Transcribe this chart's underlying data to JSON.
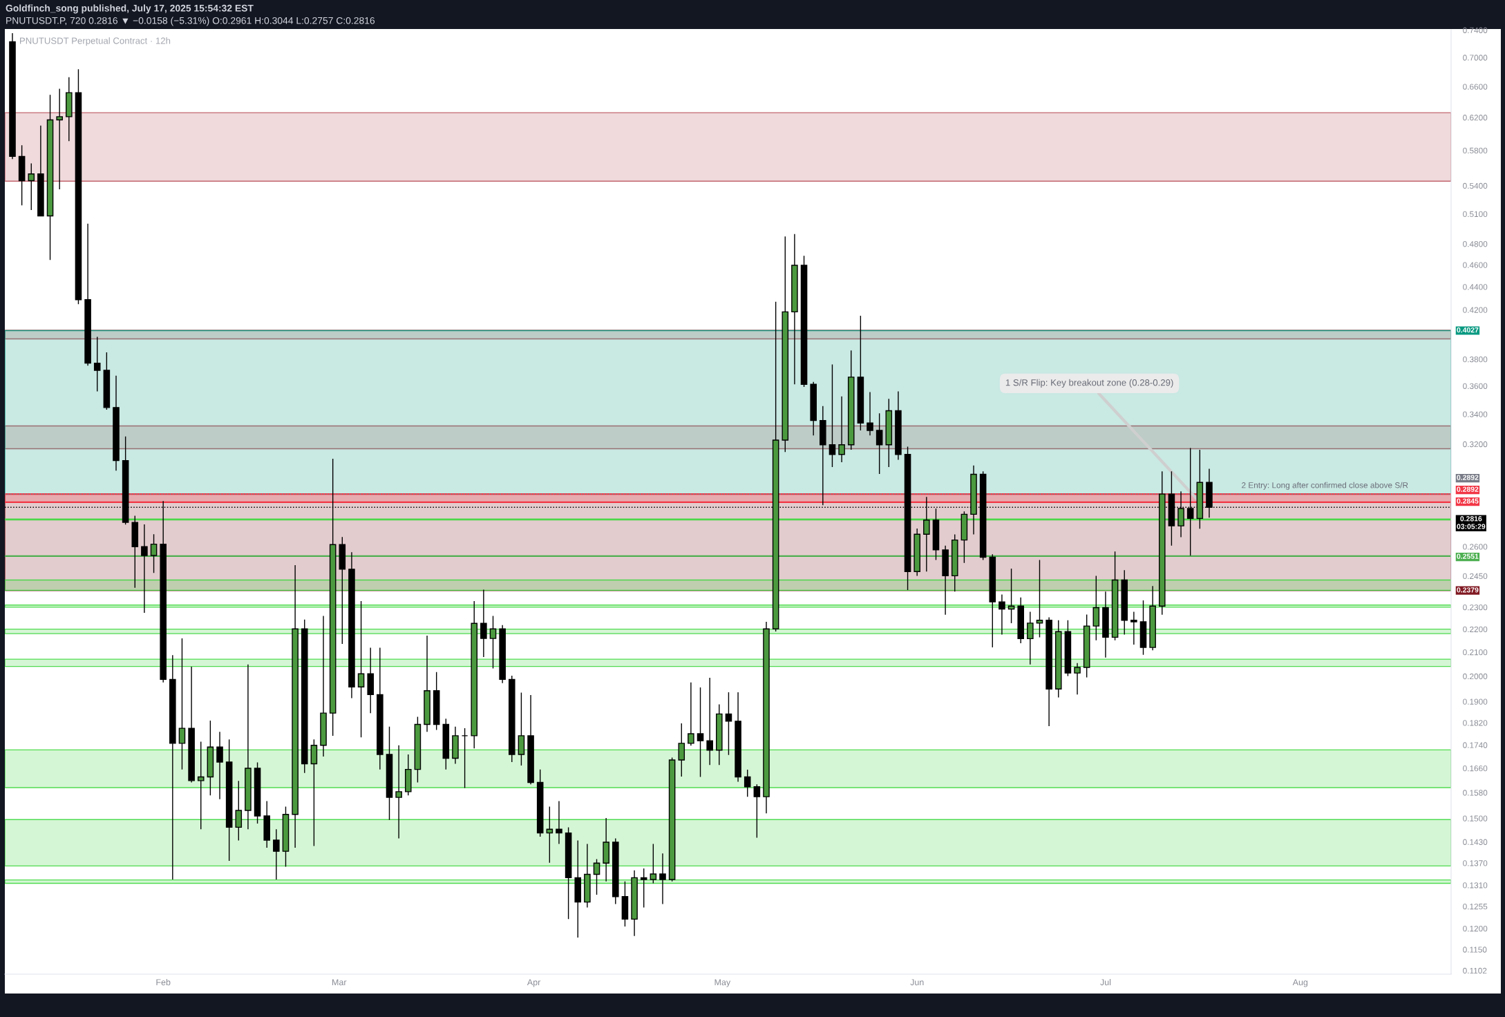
{
  "chart_data": {
    "type": "candlestick",
    "title": "Goldfinch_song published, July 17, 2025 15:54:32 EST",
    "subtitle": "PNUTUSDT.P, 720 0.2816 ▼ −0.0158 (−5.31%) O:0.2961 H:0.3044 L:0.2757 C:0.2816",
    "annotations": [
      "PNUTUSDT Perpetual Contract · 12h",
      {
        "text": "1 S/R Flip: Key breakout zone (0.28-0.29)",
        "x": "2025-07-16T12:00",
        "y": 0.2825
      },
      "2 Entry: Long after confirmed close above S/R"
    ],
    "log": true,
    "xlim": [
      "2025-01-06T19:00",
      "2025-08-25"
    ],
    "xticks": [
      {
        "value": "2025-02-01",
        "label": "Feb"
      },
      {
        "value": "2025-03-01",
        "label": "Mar"
      },
      {
        "value": "2025-04-01",
        "label": "Apr"
      },
      {
        "value": "2025-05-01",
        "label": "May"
      },
      {
        "value": "2025-06-01",
        "label": "Jun"
      },
      {
        "value": "2025-07-01",
        "label": "Jul"
      },
      {
        "value": "2025-08-01",
        "label": "Aug"
      }
    ],
    "ylim": [
      0.1094,
      0.7406
    ],
    "yticks": [
      {
        "value": 0.74,
        "label": "0.7400"
      },
      {
        "value": 0.7,
        "label": "0.7000"
      },
      {
        "value": 0.66,
        "label": "0.6600"
      },
      {
        "value": 0.62,
        "label": "0.6200"
      },
      {
        "value": 0.58,
        "label": "0.5800"
      },
      {
        "value": 0.54,
        "label": "0.5400"
      },
      {
        "value": 0.51,
        "label": "0.5100"
      },
      {
        "value": 0.48,
        "label": "0.4800"
      },
      {
        "value": 0.46,
        "label": "0.4600"
      },
      {
        "value": 0.44,
        "label": "0.4400"
      },
      {
        "value": 0.42,
        "label": "0.4200"
      },
      {
        "value": 0.38,
        "label": "0.3800"
      },
      {
        "value": 0.36,
        "label": "0.3600"
      },
      {
        "value": 0.34,
        "label": "0.3400"
      },
      {
        "value": 0.32,
        "label": "0.3200"
      },
      {
        "value": 0.26,
        "label": "0.2600"
      },
      {
        "value": 0.245,
        "label": "0.2450"
      },
      {
        "value": 0.23,
        "label": "0.2300"
      },
      {
        "value": 0.22,
        "label": "0.2200"
      },
      {
        "value": 0.21,
        "label": "0.2100"
      },
      {
        "value": 0.2,
        "label": "0.2000"
      },
      {
        "value": 0.19,
        "label": "0.1900"
      },
      {
        "value": 0.182,
        "label": "0.1820"
      },
      {
        "value": 0.174,
        "label": "0.1740"
      },
      {
        "value": 0.166,
        "label": "0.1660"
      },
      {
        "value": 0.158,
        "label": "0.1580"
      },
      {
        "value": 0.15,
        "label": "0.1500"
      },
      {
        "value": 0.143,
        "label": "0.1430"
      },
      {
        "value": 0.137,
        "label": "0.1370"
      },
      {
        "value": 0.131,
        "label": "0.1310"
      },
      {
        "value": 0.1255,
        "label": "0.1255"
      },
      {
        "value": 0.12,
        "label": "0.1200"
      },
      {
        "value": 0.115,
        "label": "0.1150"
      },
      {
        "value": 0.1102,
        "label": "0.1102"
      }
    ],
    "series": [
      {
        "color": "#000000",
        "x": [
          "2025-01-08T00:00",
          "2025-01-09T12:00",
          "2025-01-11T00:00",
          "2025-01-12T12:00",
          "2025-01-14T00:00",
          "2025-01-15T12:00",
          "2025-01-17T00:00",
          "2025-01-18T12:00",
          "2025-01-20T00:00",
          "2025-01-21T12:00",
          "2025-01-23T00:00",
          "2025-01-24T12:00",
          "2025-01-26T00:00",
          "2025-01-27T12:00",
          "2025-01-29T00:00",
          "2025-01-30T12:00",
          "2025-02-01T00:00",
          "2025-02-02T12:00",
          "2025-02-04T00:00",
          "2025-02-05T12:00",
          "2025-02-07T00:00",
          "2025-02-08T12:00",
          "2025-02-10T00:00",
          "2025-02-11T12:00",
          "2025-02-13T00:00",
          "2025-02-14T12:00",
          "2025-02-16T00:00",
          "2025-02-17T12:00",
          "2025-02-19T00:00",
          "2025-02-20T12:00",
          "2025-02-22T00:00",
          "2025-02-23T12:00",
          "2025-02-25T00:00",
          "2025-02-26T12:00",
          "2025-02-28T00:00",
          "2025-03-01T12:00",
          "2025-03-03T00:00",
          "2025-03-04T12:00",
          "2025-03-06T00:00",
          "2025-03-07T12:00",
          "2025-03-09T00:00",
          "2025-03-10T12:00",
          "2025-03-12T00:00",
          "2025-03-13T12:00",
          "2025-03-15T00:00",
          "2025-03-16T12:00",
          "2025-03-18T00:00",
          "2025-03-19T12:00",
          "2025-03-21T00:00",
          "2025-03-22T12:00",
          "2025-03-24T00:00",
          "2025-03-25T12:00",
          "2025-03-27T00:00",
          "2025-03-28T12:00",
          "2025-03-30T00:00",
          "2025-03-31T12:00",
          "2025-04-02T00:00",
          "2025-04-03T12:00",
          "2025-04-05T00:00",
          "2025-04-06T12:00",
          "2025-04-08T00:00",
          "2025-04-09T12:00",
          "2025-04-11T00:00",
          "2025-04-12T12:00",
          "2025-04-14T00:00",
          "2025-04-15T12:00",
          "2025-04-17T00:00",
          "2025-04-18T12:00",
          "2025-04-20T00:00",
          "2025-04-21T12:00",
          "2025-04-23T00:00",
          "2025-04-24T12:00",
          "2025-04-26T00:00",
          "2025-04-27T12:00",
          "2025-04-29T00:00",
          "2025-04-30T12:00",
          "2025-05-02T00:00",
          "2025-05-03T12:00",
          "2025-05-05T00:00",
          "2025-05-06T12:00",
          "2025-05-08T00:00",
          "2025-05-09T12:00",
          "2025-05-11T00:00",
          "2025-05-12T12:00",
          "2025-05-14T00:00",
          "2025-05-15T12:00",
          "2025-05-17T00:00",
          "2025-05-18T12:00",
          "2025-05-20T00:00",
          "2025-05-21T12:00",
          "2025-05-23T00:00",
          "2025-05-24T12:00",
          "2025-05-26T00:00",
          "2025-05-27T12:00",
          "2025-05-29T00:00",
          "2025-05-30T12:00",
          "2025-06-01T00:00",
          "2025-06-02T12:00",
          "2025-06-04T00:00",
          "2025-06-05T12:00",
          "2025-06-07T00:00",
          "2025-06-08T12:00",
          "2025-06-10T00:00",
          "2025-06-11T12:00",
          "2025-06-13T00:00",
          "2025-06-14T12:00",
          "2025-06-16T00:00",
          "2025-06-17T12:00",
          "2025-06-19T00:00",
          "2025-06-20T12:00",
          "2025-06-22T00:00",
          "2025-06-23T12:00",
          "2025-06-25T00:00",
          "2025-06-26T12:00",
          "2025-06-28T00:00",
          "2025-06-29T12:00",
          "2025-07-01T00:00",
          "2025-07-02T12:00",
          "2025-07-04T00:00",
          "2025-07-05T12:00",
          "2025-07-07T00:00",
          "2025-07-08T12:00",
          "2025-07-10T00:00",
          "2025-07-11T12:00",
          "2025-07-13T00:00",
          "2025-07-14T12:00",
          "2025-07-16T00:00",
          "2025-07-17T12:00"
        ],
        "ohlc": [
          [
            0.7227,
            0.7354,
            0.57,
            0.573
          ],
          [
            0.573,
            0.586,
            0.519,
            0.5455
          ],
          [
            0.5455,
            0.565,
            0.514,
            0.553
          ],
          [
            0.553,
            0.61,
            0.508,
            0.508
          ],
          [
            0.508,
            0.649,
            0.4646,
            0.617
          ],
          [
            0.617,
            0.657,
            0.536,
            0.621
          ],
          [
            0.621,
            0.6728,
            0.591,
            0.652
          ],
          [
            0.652,
            0.6837,
            0.4248,
            0.4287
          ],
          [
            0.4287,
            0.5,
            0.3751,
            0.377
          ],
          [
            0.377,
            0.3976,
            0.356,
            0.3716
          ],
          [
            0.3716,
            0.3853,
            0.3431,
            0.3446
          ],
          [
            0.3446,
            0.3676,
            0.3032,
            0.3095
          ],
          [
            0.3095,
            0.325,
            0.2719,
            0.2731
          ],
          [
            0.2731,
            0.2768,
            0.2392,
            0.26
          ],
          [
            0.26,
            0.272,
            0.2274,
            0.2554
          ],
          [
            0.2554,
            0.2666,
            0.2465,
            0.2613
          ],
          [
            0.2613,
            0.2851,
            0.1975,
            0.1987
          ],
          [
            0.1987,
            0.2087,
            0.1325,
            0.1746
          ],
          [
            0.1746,
            0.2159,
            0.1656,
            0.18
          ],
          [
            0.18,
            0.2039,
            0.1613,
            0.1619
          ],
          [
            0.1619,
            0.1752,
            0.1467,
            0.1631
          ],
          [
            0.1631,
            0.1828,
            0.1571,
            0.1733
          ],
          [
            0.1733,
            0.1787,
            0.1559,
            0.1681
          ],
          [
            0.1681,
            0.176,
            0.1376,
            0.1473
          ],
          [
            0.1473,
            0.1618,
            0.1434,
            0.1524
          ],
          [
            0.1524,
            0.2048,
            0.1467,
            0.166
          ],
          [
            0.166,
            0.168,
            0.1484,
            0.1507
          ],
          [
            0.1507,
            0.1553,
            0.1413,
            0.1435
          ],
          [
            0.1435,
            0.1467,
            0.1325,
            0.1403
          ],
          [
            0.1403,
            0.1536,
            0.136,
            0.1512
          ],
          [
            0.1512,
            0.2504,
            0.1413,
            0.2201
          ],
          [
            0.2201,
            0.2243,
            0.1644,
            0.1675
          ],
          [
            0.1675,
            0.176,
            0.1418,
            0.1739
          ],
          [
            0.1739,
            0.226,
            0.17,
            0.1856
          ],
          [
            0.1856,
            0.3107,
            0.1773,
            0.2611
          ],
          [
            0.2611,
            0.2651,
            0.2135,
            0.2484
          ],
          [
            0.2484,
            0.2571,
            0.1913,
            0.1957
          ],
          [
            0.1957,
            0.2329,
            0.1767,
            0.201
          ],
          [
            0.201,
            0.2119,
            0.1856,
            0.1927
          ],
          [
            0.1927,
            0.2119,
            0.1656,
            0.1707
          ],
          [
            0.1707,
            0.1806,
            0.1495,
            0.1565
          ],
          [
            0.1565,
            0.1739,
            0.144,
            0.1583
          ],
          [
            0.1583,
            0.1707,
            0.1571,
            0.1656
          ],
          [
            0.1656,
            0.1842,
            0.1613,
            0.1814
          ],
          [
            0.1814,
            0.2171,
            0.1787,
            0.1942
          ],
          [
            0.1942,
            0.2017,
            0.1794,
            0.1814
          ],
          [
            0.1814,
            0.1835,
            0.1656,
            0.1694
          ],
          [
            0.1694,
            0.1806,
            0.1675,
            0.1773
          ],
          [
            0.1773,
            0.18,
            0.1595,
            0.1773
          ],
          [
            0.1773,
            0.2329,
            0.1728,
            0.2226
          ],
          [
            0.2226,
            0.2383,
            0.2079,
            0.2159
          ],
          [
            0.2159,
            0.226,
            0.2032,
            0.2201
          ],
          [
            0.2201,
            0.2218,
            0.1972,
            0.1987
          ],
          [
            0.1987,
            0.2002,
            0.1681,
            0.1707
          ],
          [
            0.1707,
            0.1935,
            0.1669,
            0.1773
          ],
          [
            0.1773,
            0.1925,
            0.1607,
            0.1613
          ],
          [
            0.1613,
            0.1656,
            0.1445,
            0.1456
          ],
          [
            0.1456,
            0.1536,
            0.1371,
            0.1467
          ],
          [
            0.1467,
            0.1553,
            0.1424,
            0.1456
          ],
          [
            0.1456,
            0.1473,
            0.1223,
            0.133
          ],
          [
            0.133,
            0.1434,
            0.1178,
            0.1266
          ],
          [
            0.1266,
            0.1424,
            0.1252,
            0.1339
          ],
          [
            0.1339,
            0.1381,
            0.1285,
            0.137
          ],
          [
            0.137,
            0.1501,
            0.132,
            0.1429
          ],
          [
            0.1429,
            0.144,
            0.1261,
            0.128
          ],
          [
            0.128,
            0.132,
            0.1205,
            0.1223
          ],
          [
            0.1223,
            0.135,
            0.1182,
            0.133
          ],
          [
            0.133,
            0.1355,
            0.1252,
            0.1325
          ],
          [
            0.1325,
            0.1424,
            0.1315,
            0.134
          ],
          [
            0.134,
            0.1397,
            0.1261,
            0.1325
          ],
          [
            0.1325,
            0.1696,
            0.132,
            0.1688
          ],
          [
            0.1688,
            0.1818,
            0.1632,
            0.1746
          ],
          [
            0.1746,
            0.1975,
            0.1738,
            0.178
          ],
          [
            0.178,
            0.1955,
            0.1631,
            0.1755
          ],
          [
            0.1755,
            0.1994,
            0.1671,
            0.1722
          ],
          [
            0.1722,
            0.1889,
            0.1671,
            0.1853
          ],
          [
            0.1853,
            0.1936,
            0.1705,
            0.1826
          ],
          [
            0.1826,
            0.1936,
            0.1615,
            0.1631
          ],
          [
            0.1631,
            0.1655,
            0.1567,
            0.1599
          ],
          [
            0.1599,
            0.1607,
            0.1442,
            0.1567
          ],
          [
            0.1567,
            0.2233,
            0.1515,
            0.2201
          ],
          [
            0.2201,
            0.4269,
            0.219,
            0.3226
          ],
          [
            0.3226,
            0.4873,
            0.3149,
            0.4183
          ],
          [
            0.4183,
            0.4897,
            0.3612,
            0.4596
          ],
          [
            0.4596,
            0.4686,
            0.3593,
            0.3612
          ],
          [
            0.3612,
            0.363,
            0.3257,
            0.3357
          ],
          [
            0.3357,
            0.3456,
            0.2828,
            0.3196
          ],
          [
            0.3196,
            0.376,
            0.3055,
            0.3134
          ],
          [
            0.3134,
            0.3525,
            0.3085,
            0.3196
          ],
          [
            0.3196,
            0.3868,
            0.3164,
            0.3665
          ],
          [
            0.3665,
            0.415,
            0.329,
            0.334
          ],
          [
            0.334,
            0.3555,
            0.3257,
            0.329
          ],
          [
            0.329,
            0.3406,
            0.3012,
            0.3196
          ],
          [
            0.3196,
            0.3507,
            0.3055,
            0.3424
          ],
          [
            0.3424,
            0.356,
            0.31,
            0.3134
          ],
          [
            0.3134,
            0.3183,
            0.2381,
            0.2472
          ],
          [
            0.2472,
            0.2697,
            0.2451,
            0.2666
          ],
          [
            0.2666,
            0.2875,
            0.2472,
            0.2744
          ],
          [
            0.2744,
            0.2809,
            0.2531,
            0.2583
          ],
          [
            0.2583,
            0.2605,
            0.2265,
            0.2451
          ],
          [
            0.2451,
            0.2665,
            0.2374,
            0.2635
          ],
          [
            0.2635,
            0.2792,
            0.2516,
            0.2776
          ],
          [
            0.2776,
            0.3064,
            0.2665,
            0.301
          ],
          [
            0.301,
            0.3028,
            0.2531,
            0.2545
          ],
          [
            0.2545,
            0.256,
            0.212,
            0.2325
          ],
          [
            0.2325,
            0.236,
            0.2176,
            0.2291
          ],
          [
            0.2291,
            0.2487,
            0.2227,
            0.2305
          ],
          [
            0.2305,
            0.2346,
            0.2138,
            0.2158
          ],
          [
            0.2158,
            0.2279,
            0.2048,
            0.2227
          ],
          [
            0.2227,
            0.2531,
            0.2164,
            0.224
          ],
          [
            0.224,
            0.2253,
            0.1808,
            0.1949
          ],
          [
            0.1949,
            0.224,
            0.1916,
            0.2189
          ],
          [
            0.2189,
            0.224,
            0.2001,
            0.2013
          ],
          [
            0.2013,
            0.2054,
            0.1927,
            0.2036
          ],
          [
            0.2036,
            0.2266,
            0.1995,
            0.2214
          ],
          [
            0.2214,
            0.2451,
            0.2151,
            0.2298
          ],
          [
            0.2298,
            0.2374,
            0.2077,
            0.2164
          ],
          [
            0.2164,
            0.2575,
            0.2151,
            0.243
          ],
          [
            0.243,
            0.2479,
            0.2176,
            0.224
          ],
          [
            0.224,
            0.2279,
            0.2132,
            0.2233
          ],
          [
            0.2233,
            0.2332,
            0.2089,
            0.212
          ],
          [
            0.212,
            0.2401,
            0.2108,
            0.2305
          ],
          [
            0.2305,
            0.3028,
            0.2265,
            0.2892
          ],
          [
            0.2892,
            0.3028,
            0.2605,
            0.2712
          ],
          [
            0.2712,
            0.2908,
            0.265,
            0.2809
          ],
          [
            0.2809,
            0.3175,
            0.2553,
            0.2753
          ],
          [
            0.2753,
            0.3163,
            0.2696,
            0.2961
          ],
          [
            0.2961,
            0.3044,
            0.2757,
            0.2816
          ]
        ],
        "colors": [
          "#000000",
          "#000000",
          "#4c9a3f",
          "#000000",
          "#4c9a3f",
          "#4c9a3f",
          "#4c9a3f",
          "#000000",
          "#000000",
          "#000000",
          "#000000",
          "#000000",
          "#000000",
          "#000000",
          "#000000",
          "#4c9a3f",
          "#000000",
          "#000000",
          "#4c9a3f",
          "#000000",
          "#4c9a3f",
          "#4c9a3f",
          "#000000",
          "#000000",
          "#4c9a3f",
          "#4c9a3f",
          "#000000",
          "#000000",
          "#000000",
          "#4c9a3f",
          "#4c9a3f",
          "#000000",
          "#4c9a3f",
          "#4c9a3f",
          "#4c9a3f",
          "#000000",
          "#000000",
          "#4c9a3f",
          "#000000",
          "#000000",
          "#000000",
          "#4c9a3f",
          "#4c9a3f",
          "#4c9a3f",
          "#4c9a3f",
          "#000000",
          "#000000",
          "#4c9a3f",
          "#000000",
          "#4c9a3f",
          "#000000",
          "#4c9a3f",
          "#000000",
          "#000000",
          "#4c9a3f",
          "#000000",
          "#000000",
          "#4c9a3f",
          "#000000",
          "#000000",
          "#000000",
          "#4c9a3f",
          "#4c9a3f",
          "#4c9a3f",
          "#000000",
          "#000000",
          "#4c9a3f",
          "#000000",
          "#4c9a3f",
          "#000000",
          "#4c9a3f",
          "#4c9a3f",
          "#4c9a3f",
          "#000000",
          "#000000",
          "#4c9a3f",
          "#000000",
          "#000000",
          "#000000",
          "#000000",
          "#4c9a3f",
          "#4c9a3f",
          "#4c9a3f",
          "#4c9a3f",
          "#000000",
          "#000000",
          "#000000",
          "#000000",
          "#4c9a3f",
          "#4c9a3f",
          "#000000",
          "#000000",
          "#000000",
          "#4c9a3f",
          "#000000",
          "#000000",
          "#4c9a3f",
          "#4c9a3f",
          "#000000",
          "#000000",
          "#4c9a3f",
          "#4c9a3f",
          "#4c9a3f",
          "#000000",
          "#000000",
          "#000000",
          "#4c9a3f",
          "#000000",
          "#4c9a3f",
          "#4c9a3f",
          "#000000",
          "#4c9a3f",
          "#000000",
          "#4c9a3f",
          "#4c9a3f",
          "#4c9a3f",
          "#000000",
          "#4c9a3f",
          "#000000",
          "#000000",
          "#000000",
          "#4c9a3f",
          "#4c9a3f",
          "#000000",
          "#4c9a3f",
          "#000000",
          "#4c9a3f",
          "#000000"
        ]
      }
    ],
    "bands": [
      {
        "axis": "y",
        "from": 0.545,
        "to": 0.626,
        "color": "#bb5760"
      },
      {
        "axis": "y",
        "from": 0.396,
        "to": 0.403,
        "color": "#bb5760"
      },
      {
        "axis": "y",
        "from": 0.317,
        "to": 0.332,
        "color": "#bb5760"
      },
      {
        "axis": "y",
        "from": 0.2892,
        "to": 0.4027,
        "label": "0.4027",
        "color": "#089981"
      },
      {
        "axis": "y",
        "from": 0.2892,
        "to": 0.2379,
        "label": "0.2379",
        "color": "#801922"
      },
      {
        "axis": "y",
        "from": 0.2845,
        "to": 0.2892,
        "color": "#f23645"
      },
      {
        "axis": "y",
        "from": 0.2745,
        "to": 0.275,
        "color": "#3ed83e"
      },
      {
        "axis": "y",
        "from": 0.238,
        "to": 0.243,
        "color": "#3ed83e"
      },
      {
        "axis": "y",
        "from": 0.23,
        "to": 0.231,
        "color": "#3ed83e"
      },
      {
        "axis": "y",
        "from": 0.218,
        "to": 0.22,
        "color": "#3ed83e"
      },
      {
        "axis": "y",
        "from": 0.204,
        "to": 0.207,
        "color": "#3ed83e"
      },
      {
        "axis": "y",
        "from": 0.1596,
        "to": 0.1723,
        "color": "#3ed83e"
      },
      {
        "axis": "y",
        "from": 0.1362,
        "to": 0.1496,
        "color": "#3ed83e"
      },
      {
        "axis": "y",
        "from": 0.1315,
        "to": 0.1324,
        "color": "#3ed83e"
      }
    ],
    "ref_lines": [
      {
        "axis": "y",
        "value": 0.2892,
        "label": "0.2892",
        "color": "#787b86",
        "line_style": "dotted"
      },
      {
        "axis": "y",
        "value": 0.2892,
        "label": "0.2892",
        "color": "#f23645"
      },
      {
        "axis": "y",
        "value": 0.2845,
        "label": "0.2845",
        "color": "#f23645"
      },
      {
        "axis": "y",
        "value": 0.2816,
        "label": "0.2816\n03:05:29",
        "color": "#000000",
        "line_style": "dotted"
      },
      {
        "axis": "y",
        "value": 0.2551,
        "label": "0.2551",
        "color": "#4caf50"
      }
    ]
  }
}
